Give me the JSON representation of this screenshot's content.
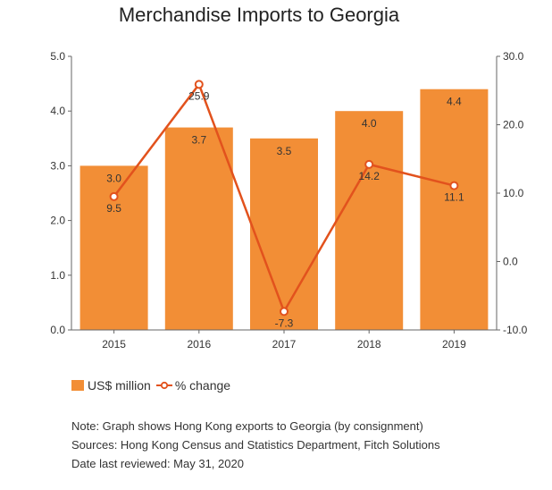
{
  "chart_data": {
    "type": "bar",
    "title": "Merchandise Imports to Georgia",
    "categories": [
      "2015",
      "2016",
      "2017",
      "2018",
      "2019"
    ],
    "series": [
      {
        "name": "US$ million",
        "type": "bar",
        "axis": "left",
        "values": [
          3.0,
          3.7,
          3.5,
          4.0,
          4.4
        ],
        "labels": [
          "3.0",
          "3.7",
          "3.5",
          "4.0",
          "4.4"
        ]
      },
      {
        "name": "% change",
        "type": "line",
        "axis": "right",
        "values": [
          9.5,
          25.9,
          -7.3,
          14.2,
          11.1
        ],
        "labels": [
          "9.5",
          "25.9",
          "-7.3",
          "14.2",
          "11.1"
        ]
      }
    ],
    "y_left": {
      "min": 0,
      "max": 5,
      "ticks": [
        "0.0",
        "1.0",
        "2.0",
        "3.0",
        "4.0",
        "5.0"
      ]
    },
    "y_right": {
      "min": -10,
      "max": 30,
      "ticks": [
        "-10.0",
        "0.0",
        "10.0",
        "20.0",
        "30.0"
      ]
    },
    "grid": false,
    "legend_position": "bottom-left"
  },
  "colors": {
    "bar": "#f28e36",
    "line": "#e2521d",
    "axis": "#666666",
    "text": "#333333"
  },
  "notes": {
    "note": "Note: Graph shows Hong Kong exports to Georgia (by consignment)",
    "sources": "Sources: Hong Kong Census and Statistics Department, Fitch Solutions",
    "reviewed": "Date last reviewed: May 31, 2020"
  }
}
